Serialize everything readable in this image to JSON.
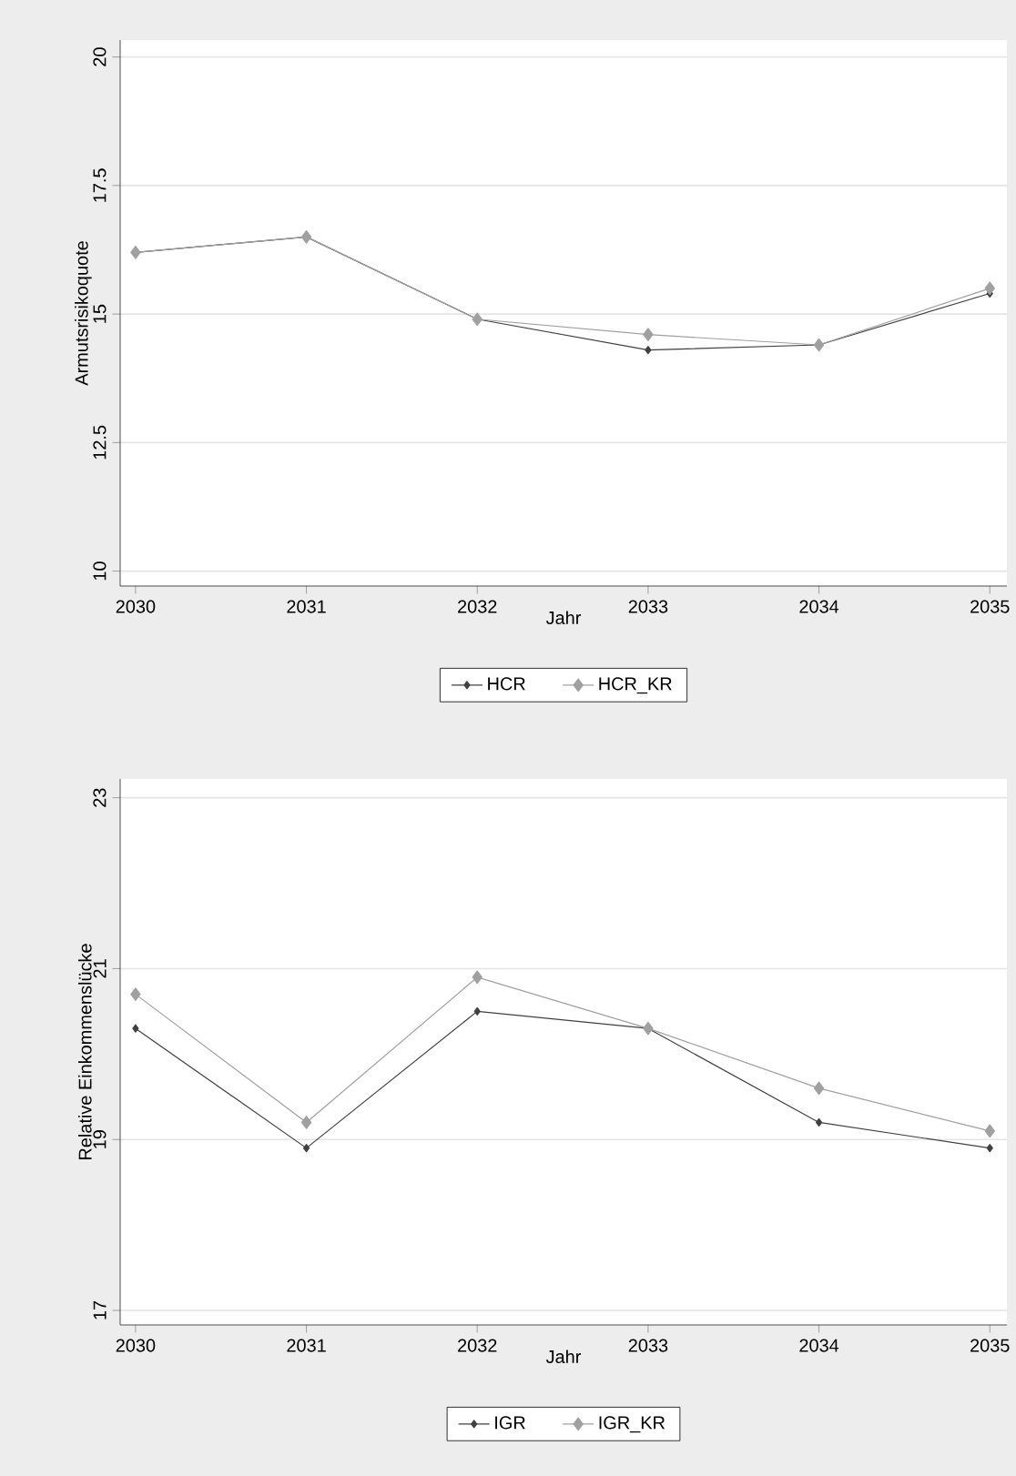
{
  "chart_data": [
    {
      "type": "line",
      "xlabel": "Jahr",
      "ylabel": "Armutsrisikoquote",
      "x": [
        2030,
        2031,
        2032,
        2033,
        2034,
        2035
      ],
      "series": [
        {
          "name": "HCR",
          "color": "#404040",
          "values": [
            16.2,
            16.5,
            14.9,
            14.3,
            14.4,
            15.4
          ]
        },
        {
          "name": "HCR_KR",
          "color": "#a0a0a0",
          "values": [
            16.2,
            16.5,
            14.9,
            14.6,
            14.4,
            15.5
          ]
        }
      ],
      "xlim": [
        2029.91,
        2035.1
      ],
      "ylim": [
        9.71,
        20.33
      ],
      "xticks": [
        2030,
        2031,
        2032,
        2033,
        2034,
        2035
      ],
      "yticks": [
        10,
        12.5,
        15,
        17.5,
        20
      ],
      "grid": "y",
      "legend": "bottom",
      "marker": "diamond",
      "line_style": "solid"
    },
    {
      "type": "line",
      "xlabel": "Jahr",
      "ylabel": "Relative Einkommenslücke",
      "x": [
        2030,
        2031,
        2032,
        2033,
        2034,
        2035
      ],
      "series": [
        {
          "name": "IGR",
          "color": "#404040",
          "values": [
            20.3,
            18.9,
            20.5,
            20.3,
            19.2,
            18.9
          ]
        },
        {
          "name": "IGR_KR",
          "color": "#a0a0a0",
          "values": [
            20.7,
            19.2,
            20.9,
            20.3,
            19.6,
            19.1
          ]
        }
      ],
      "xlim": [
        2029.91,
        2035.1
      ],
      "ylim": [
        16.83,
        23.22
      ],
      "xticks": [
        2030,
        2031,
        2032,
        2033,
        2034,
        2035
      ],
      "yticks": [
        17,
        19,
        21,
        23
      ],
      "grid": "y",
      "legend": "bottom",
      "marker": "diamond",
      "line_style": "solid"
    }
  ]
}
